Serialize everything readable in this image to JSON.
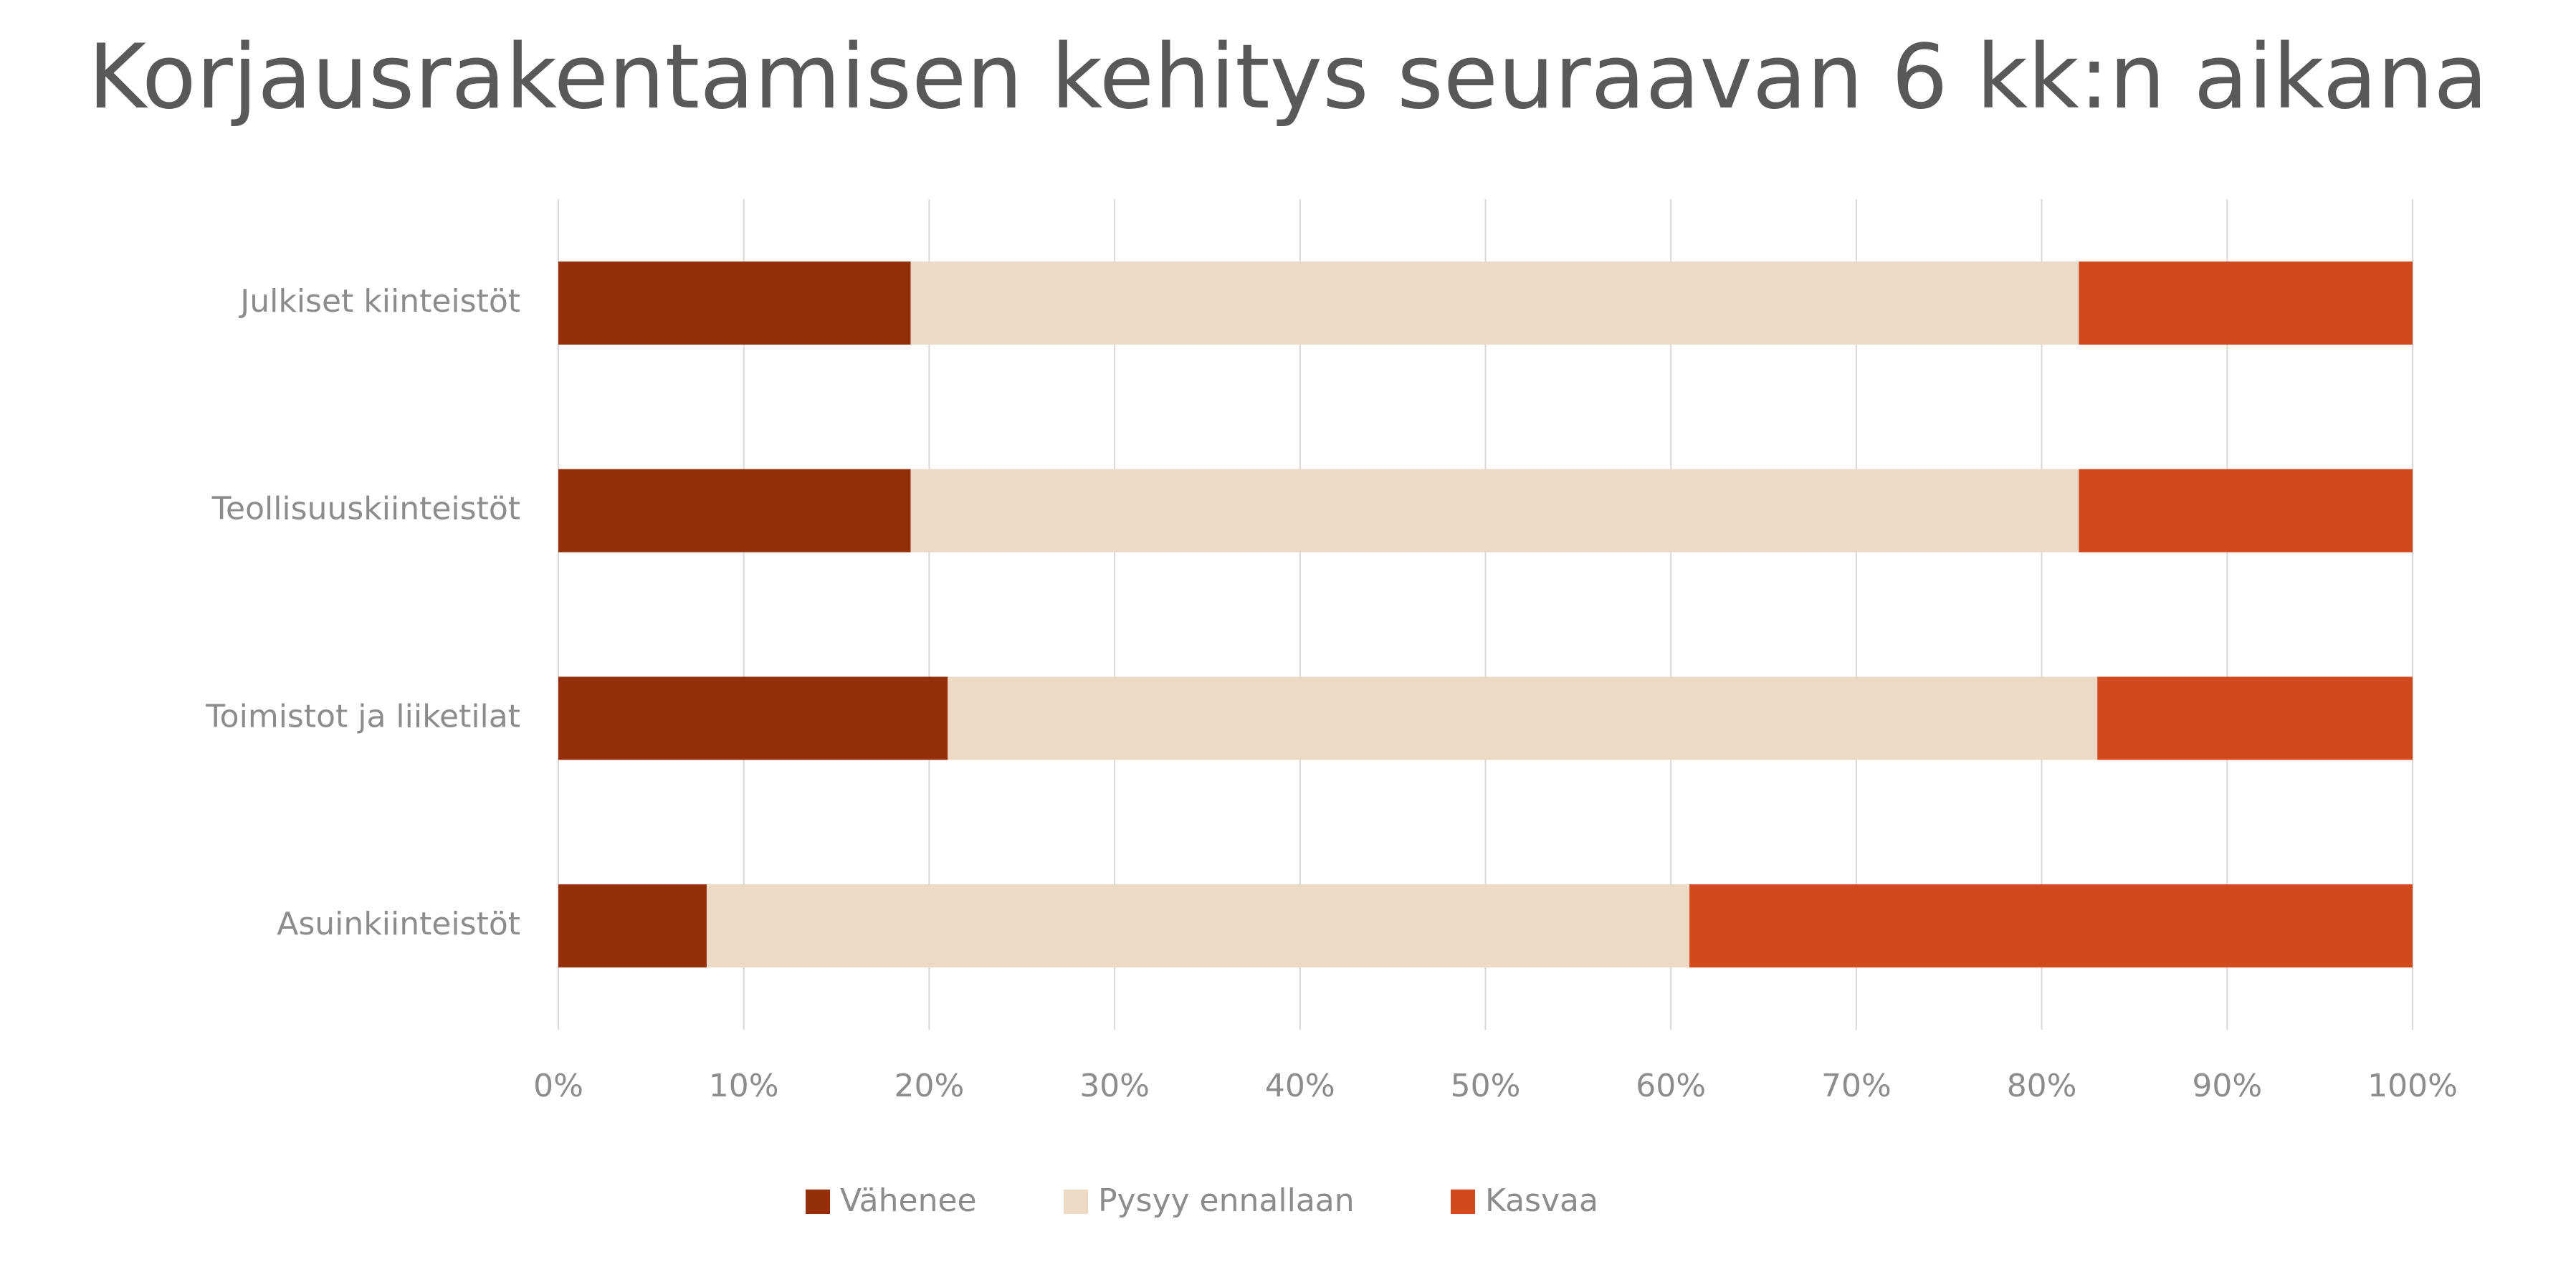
{
  "chart_data": {
    "type": "stacked_bar_horizontal",
    "title": "Korjausrakentamisen kehitys seuraavan 6 kk:n aikana",
    "categories": [
      "Julkiset kiinteistöt",
      "Teollisuuskiinteistöt",
      "Toimistot ja liiketilat",
      "Asuinkiinteistöt"
    ],
    "series": [
      {
        "name": "Vähenee",
        "color": "#933009",
        "values": [
          19,
          19,
          21,
          8
        ]
      },
      {
        "name": "Pysyy ennallaan",
        "color": "#eddac6",
        "values": [
          63,
          63,
          62,
          53
        ]
      },
      {
        "name": "Kasvaa",
        "color": "#d2491e",
        "values": [
          18,
          18,
          17,
          39
        ]
      }
    ],
    "xlim": [
      0,
      100
    ],
    "xticks": [
      {
        "value": 0,
        "label": "0%"
      },
      {
        "value": 10,
        "label": "10%"
      },
      {
        "value": 20,
        "label": "20%"
      },
      {
        "value": 30,
        "label": "30%"
      },
      {
        "value": 40,
        "label": "40%"
      },
      {
        "value": 50,
        "label": "50%"
      },
      {
        "value": 60,
        "label": "60%"
      },
      {
        "value": 70,
        "label": "70%"
      },
      {
        "value": 80,
        "label": "80%"
      },
      {
        "value": 90,
        "label": "90%"
      },
      {
        "value": 100,
        "label": "100%"
      }
    ],
    "grid": true,
    "legend": "bottom"
  }
}
